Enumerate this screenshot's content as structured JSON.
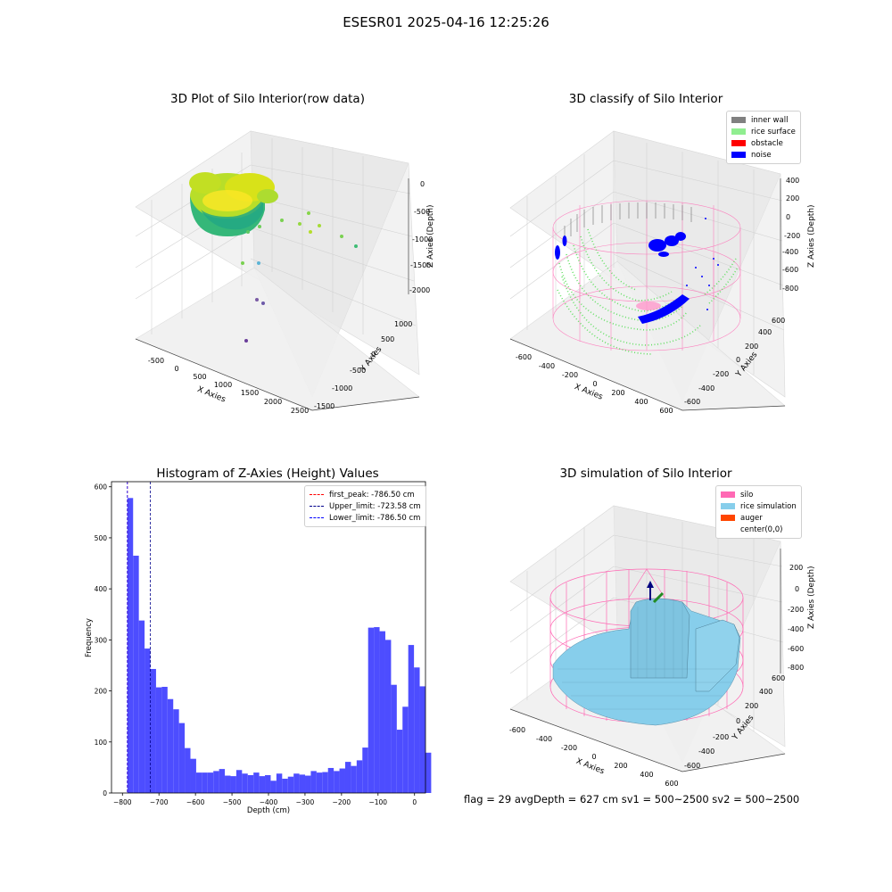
{
  "suptitle": "ESESR01 2025-04-16 12:25:26",
  "chart_data": [
    {
      "type": "scatter",
      "title": "3D Plot of Silo Interior(row data)",
      "xlabel": "X Axies",
      "ylabel": "Y Axies",
      "zlabel": "Z Axies (Depth)",
      "x_ticks": [
        "-500",
        "0",
        "500",
        "1000",
        "1500",
        "2000",
        "2500"
      ],
      "y_ticks": [
        "-1500",
        "-1000",
        "-500",
        "0",
        "500",
        "1000"
      ],
      "z_ticks": [
        "0",
        "-500",
        "-1000",
        "-1500",
        "-2000"
      ],
      "colormap": "viridis"
    },
    {
      "type": "scatter",
      "title": "3D classify of Silo Interior",
      "xlabel": "X Axies",
      "ylabel": "Y Axies",
      "zlabel": "Z Axies (Depth)",
      "x_ticks": [
        "-600",
        "-400",
        "-200",
        "0",
        "200",
        "400",
        "600"
      ],
      "y_ticks": [
        "-600",
        "-400",
        "-200",
        "0",
        "200",
        "400",
        "600"
      ],
      "z_ticks": [
        "400",
        "200",
        "0",
        "-200",
        "-400",
        "-600",
        "-800"
      ],
      "legend": [
        {
          "label": "inner wall",
          "color": "#808080"
        },
        {
          "label": "rice surface",
          "color": "#90ee90"
        },
        {
          "label": "obstacle",
          "color": "#ff0000"
        },
        {
          "label": "noise",
          "color": "#0000ff"
        }
      ]
    },
    {
      "type": "bar",
      "title": "Histogram of Z-Axies (Height) Values",
      "xlabel": "Depth (cm)",
      "ylabel": "Frequency",
      "xlim": [
        -830,
        30
      ],
      "ylim": [
        0,
        610
      ],
      "x_ticks": [
        -800,
        -700,
        -600,
        -500,
        -400,
        -300,
        -200,
        -100,
        0
      ],
      "y_ticks": [
        0,
        100,
        200,
        300,
        400,
        500,
        600
      ],
      "bar_color": "#4d4dff",
      "bin_start": -786.5,
      "bin_width": 15.7,
      "values": [
        578,
        465,
        338,
        283,
        243,
        207,
        208,
        184,
        164,
        137,
        88,
        67,
        40,
        40,
        40,
        43,
        47,
        34,
        33,
        45,
        38,
        35,
        40,
        33,
        35,
        24,
        38,
        28,
        32,
        38,
        36,
        34,
        43,
        40,
        41,
        49,
        43,
        48,
        61,
        53,
        64,
        89,
        324,
        325,
        317,
        300,
        212,
        124,
        169,
        290,
        246,
        209,
        79
      ],
      "legend": [
        {
          "label": "first_peak: -786.50 cm",
          "color": "#ff0000",
          "x": -786.5
        },
        {
          "label": "Upper_limit: -723.58 cm",
          "color": "#00008b",
          "x": -723.58
        },
        {
          "label": "Lower_limit: -786.50 cm",
          "color": "#0000ff",
          "x": -786.5
        }
      ]
    },
    {
      "type": "surface",
      "title": "3D simulation of Silo Interior",
      "xlabel": "X Axies",
      "ylabel": "Y Axies",
      "zlabel": "Z Axies (Depth)",
      "x_ticks": [
        "-600",
        "-400",
        "-200",
        "0",
        "200",
        "400",
        "600"
      ],
      "y_ticks": [
        "-600",
        "-400",
        "-200",
        "0",
        "200",
        "400",
        "600"
      ],
      "z_ticks": [
        "200",
        "0",
        "-200",
        "-400",
        "-600",
        "-800"
      ],
      "legend": [
        {
          "label": "silo",
          "color": "#ff69b4"
        },
        {
          "label": "rice simulation",
          "color": "#87ceeb"
        },
        {
          "label": "auger",
          "color": "#ff4500"
        },
        {
          "label": "center(0,0)",
          "color": ""
        }
      ]
    }
  ],
  "caption": "flag = 29  avgDepth = 627 cm  sv1 = 500~2500  sv2 = 500~2500"
}
